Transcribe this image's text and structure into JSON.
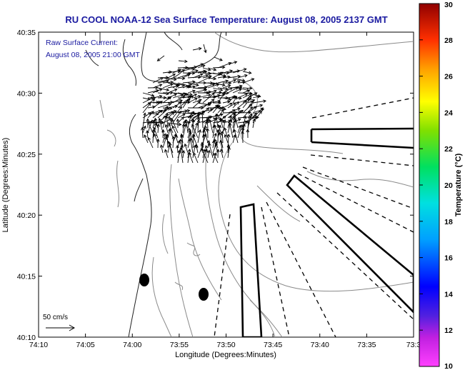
{
  "title": "RU COOL  NOAA-12  Sea Surface Temperature:  August 08, 2005 2137 GMT",
  "current_legend": {
    "line1": "Raw Surface Current:",
    "line2": "August 08, 2005 21:00 GMT"
  },
  "scale_arrow_label": "50 cm/s",
  "chart_data": {
    "type": "map",
    "title": "RU COOL  NOAA-12  Sea Surface Temperature:  August 08, 2005 2137 GMT",
    "xlabel": "Longitude (Degrees:Minutes)",
    "ylabel": "Latitude (Degrees:Minutes)",
    "x_ticks": [
      "74:10",
      "74:05",
      "74:00",
      "73:55",
      "73:50",
      "73:45",
      "73:40",
      "73:35",
      "73:3"
    ],
    "y_ticks": [
      "40:35",
      "40:30",
      "40:25",
      "40:20",
      "40:15",
      "40:10"
    ],
    "xlim_minutes_west": [
      10,
      -30
    ],
    "ylim_minutes_north": [
      10,
      35
    ],
    "colorbar": {
      "label": "Temperature (°C)",
      "ticks": [
        "30",
        "28",
        "26",
        "24",
        "22",
        "20",
        "18",
        "16",
        "14",
        "12",
        "10"
      ],
      "range": [
        10,
        30
      ]
    },
    "markers": [
      {
        "name": "marker-west",
        "lon": "73:59",
        "lat": "40:14.7"
      },
      {
        "name": "marker-east",
        "lon": "73:52.3",
        "lat": "40:13.5"
      }
    ]
  }
}
